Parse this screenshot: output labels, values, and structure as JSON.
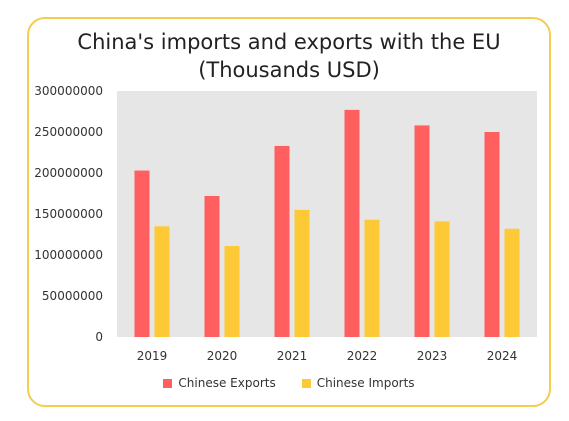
{
  "chart_data": {
    "type": "bar",
    "title": "China's imports and exports with the EU",
    "subtitle": "(Thousands USD)",
    "categories": [
      "2019",
      "2020",
      "2021",
      "2022",
      "2023",
      "2024"
    ],
    "series": [
      {
        "name": "Chinese Exports",
        "color": "#ff5f5f",
        "values": [
          203000000,
          172000000,
          233000000,
          277000000,
          258000000,
          250000000
        ]
      },
      {
        "name": "Chinese Imports",
        "color": "#fec937",
        "values": [
          135000000,
          111000000,
          155000000,
          143000000,
          141000000,
          132000000
        ]
      }
    ],
    "ylim": [
      0,
      300000000
    ],
    "yticks": [
      "300000000",
      "250000000",
      "200000000",
      "150000000",
      "100000000",
      "50000000",
      "0"
    ],
    "ytick_values": [
      300000000,
      250000000,
      200000000,
      150000000,
      100000000,
      50000000,
      0
    ],
    "plot_background": "#e6e6e6",
    "grid": false,
    "legend_position": "bottom"
  },
  "colors": {
    "card_border": "#f2cd50"
  }
}
